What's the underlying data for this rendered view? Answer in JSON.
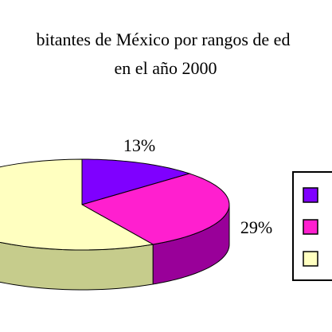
{
  "chart_data": {
    "type": "pie3d",
    "title": [
      "bitantes de México por rangos de ed",
      "en el año 2000"
    ],
    "categories": [
      null,
      null,
      null
    ],
    "values": [
      13,
      29,
      58
    ],
    "value_labels": [
      "13%",
      "29%",
      null
    ],
    "colors": [
      "#7f00ff",
      "#ff1fcf",
      "#ffffc0"
    ],
    "side_colors": [
      "#4a0099",
      "#990099",
      "#c6cc8c"
    ],
    "legend": "right"
  }
}
